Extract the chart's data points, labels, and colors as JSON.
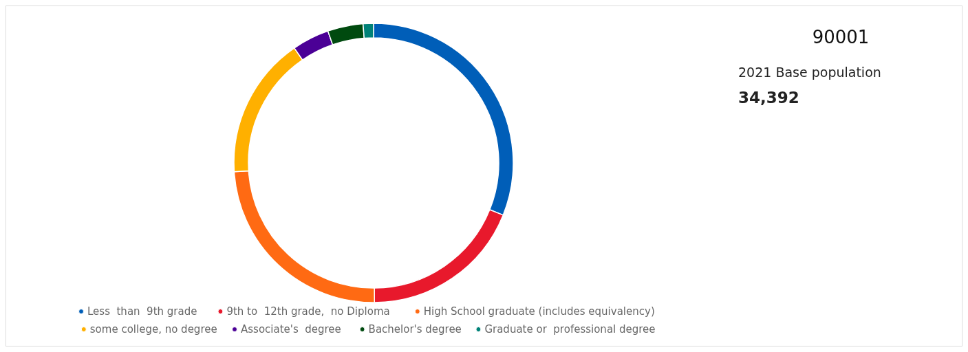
{
  "chart_data": {
    "type": "donut",
    "title": "90001",
    "annotations": [
      "2021 Base population",
      "34,392"
    ],
    "categories": [
      "Less  than  9th grade",
      "9th to  12th grade,  no Diploma",
      "High School graduate (includes equivalency)",
      "some college, no degree",
      "Associate's  degree",
      "Bachelor's degree",
      "Graduate or  professional degree"
    ],
    "values": [
      31.1,
      18.8,
      24.1,
      16.4,
      4.3,
      4.1,
      1.2
    ],
    "colors": [
      "#005eb8",
      "#e8192c",
      "#ff6a13",
      "#ffb000",
      "#4b0096",
      "#004a0f",
      "#008278"
    ],
    "legend": "bottom"
  }
}
